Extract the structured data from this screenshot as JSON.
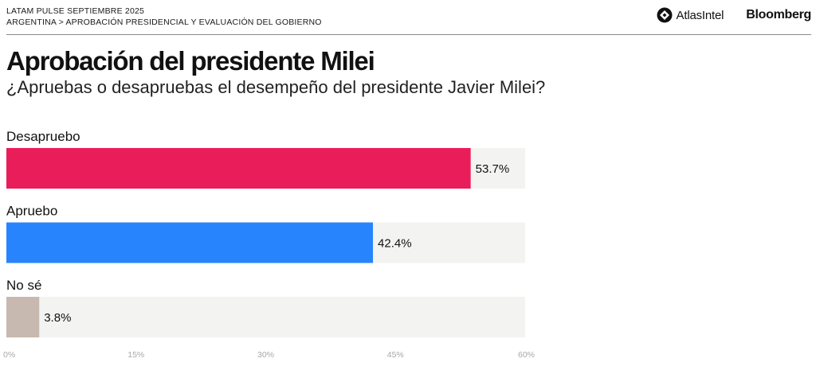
{
  "header": {
    "survey": "LATAM PULSE SEPTIEMBRE 2025",
    "breadcrumb": "ARGENTINA > APROBACIÓN PRESIDENCIAL Y EVALUACIÓN DEL GOBIERNO",
    "logo_atlas": "AtlasIntel",
    "logo_bloomberg": "Bloomberg"
  },
  "chart_data": {
    "type": "bar",
    "orientation": "horizontal",
    "title": "Aprobación del presidente Milei",
    "subtitle": "¿Apruebas o desapruebas el desempeño del presidente Javier Milei?",
    "categories": [
      "Desapruebo",
      "Apruebo",
      "No sé"
    ],
    "values": [
      53.7,
      42.4,
      3.8
    ],
    "value_labels": [
      "53.7%",
      "42.4%",
      "3.8%"
    ],
    "colors": [
      "#ea1d5b",
      "#2884fd",
      "#c7b9b0"
    ],
    "track_color": "#f3f3f1",
    "xlim": [
      0,
      60
    ],
    "xticks": [
      0,
      15,
      30,
      45,
      60
    ],
    "xtick_labels": [
      "0%",
      "15%",
      "30%",
      "45%",
      "60%"
    ],
    "grid": false,
    "legend": "none"
  }
}
